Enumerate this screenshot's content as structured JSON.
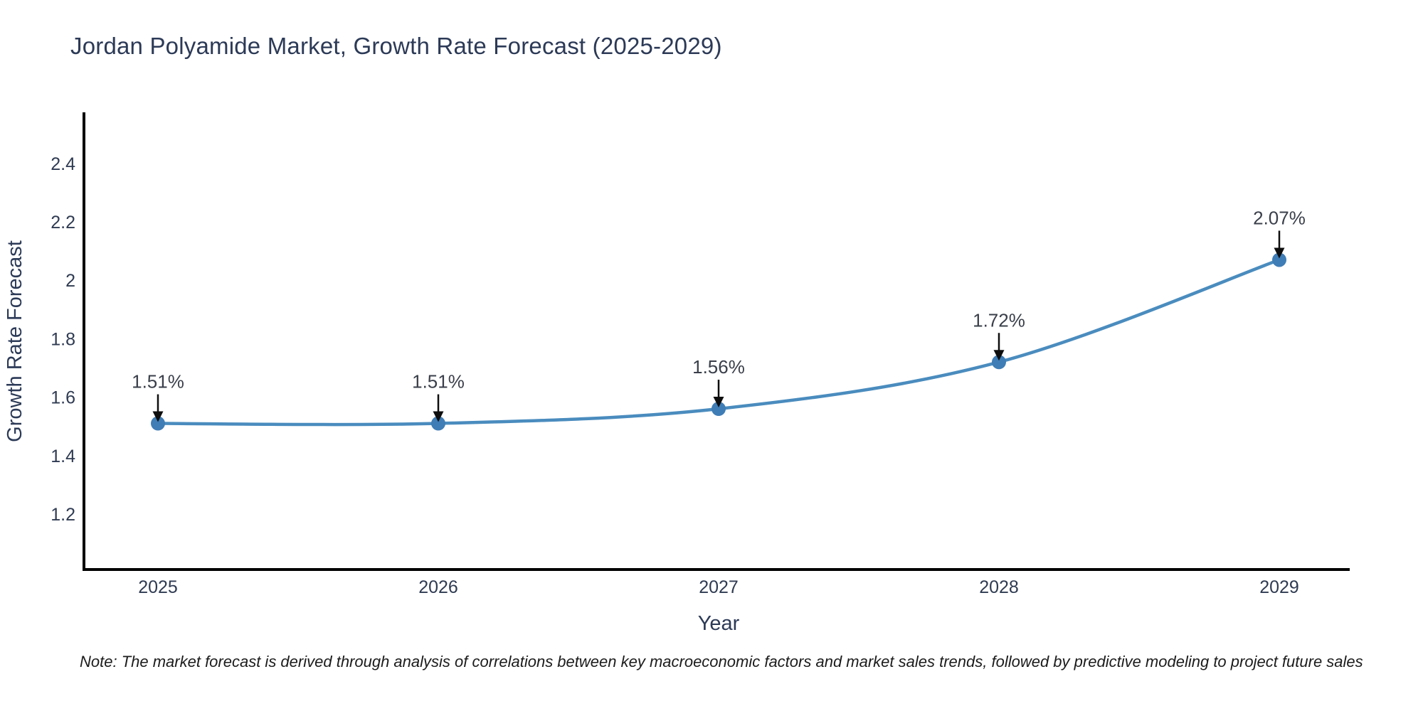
{
  "title": "Jordan Polyamide Market, Growth Rate Forecast (2025-2029)",
  "note": "Note: The market forecast is derived through analysis of correlations between key macroeconomic factors and market sales trends, followed by predictive modeling to project future sales",
  "chart_data": {
    "type": "line",
    "title": "Jordan Polyamide Market, Growth Rate Forecast (2025-2029)",
    "x": [
      "2025",
      "2026",
      "2027",
      "2028",
      "2029"
    ],
    "series": [
      {
        "name": "Growth Rate Forecast",
        "values": [
          1.51,
          1.51,
          1.56,
          1.72,
          2.07
        ]
      }
    ],
    "point_labels": [
      "1.51%",
      "1.51%",
      "1.56%",
      "1.72%",
      "2.07%"
    ],
    "xlabel": "Year",
    "ylabel": "Growth Rate Forecast",
    "yticks": [
      2.4,
      2.2,
      2.0,
      1.8,
      1.6,
      1.4,
      1.2
    ],
    "ylim": [
      1.01,
      2.57
    ],
    "grid": false,
    "legend_position": "none",
    "colors": {
      "line": "#4a8cbe",
      "marker": "#3f7db6",
      "axis": "#000000",
      "tick_text": "#2f3b52",
      "title_text": "#2c3a57",
      "annotation_text": "#3a3f4a",
      "arrow": "#0e0e0e",
      "background": "#ffffff"
    }
  }
}
